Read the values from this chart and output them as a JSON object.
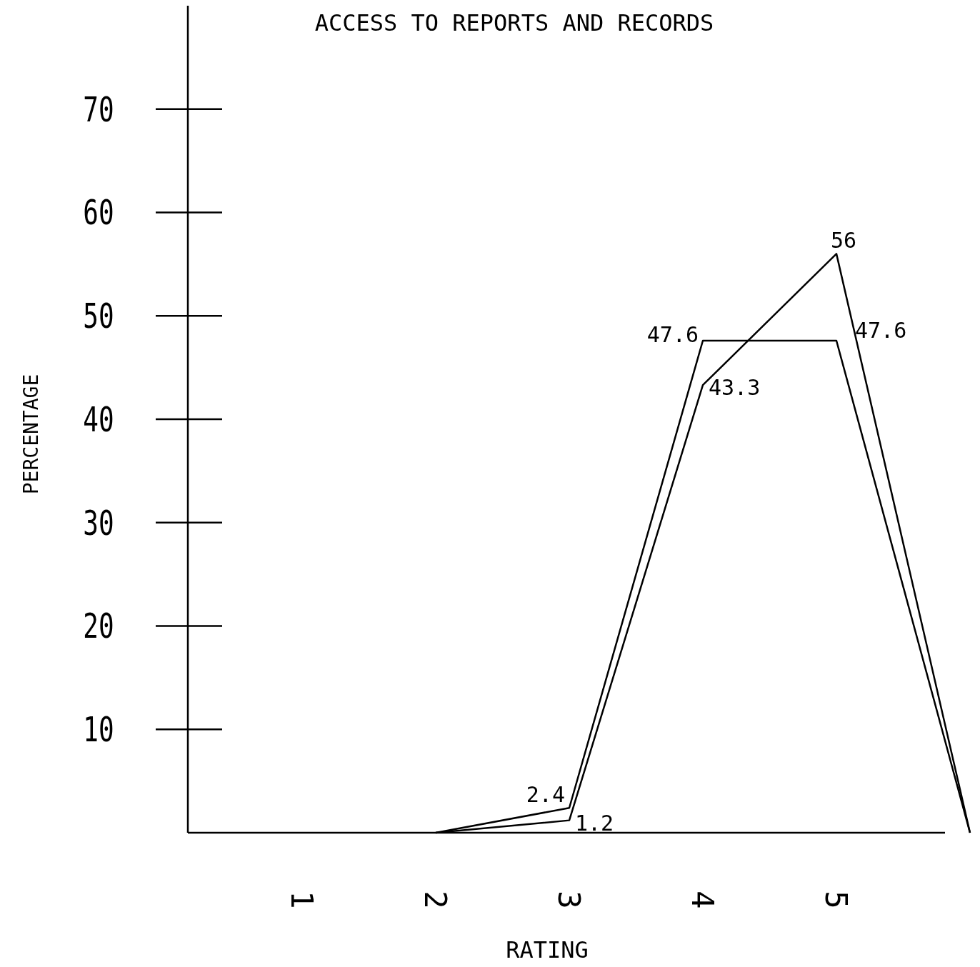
{
  "chart_data": {
    "type": "line",
    "title": "ACCESS TO REPORTS AND RECORDS",
    "xlabel": "RATING",
    "ylabel": "PERCENTAGE",
    "categories": [
      "1",
      "2",
      "3",
      "4",
      "5",
      null
    ],
    "ylim": [
      0,
      80
    ],
    "yticks": [
      10,
      20,
      30,
      40,
      50,
      60,
      70
    ],
    "grid": false,
    "marker": "none",
    "line_style": "solid",
    "series": [
      {
        "color": "#000000",
        "values": [
          null,
          0,
          1.2,
          43.3,
          56,
          0
        ],
        "value_labels": [
          null,
          null,
          "1.2",
          "43.3",
          "56",
          null
        ]
      },
      {
        "color": "#000000",
        "values": [
          null,
          0,
          2.4,
          47.6,
          47.6,
          0
        ],
        "value_labels": [
          null,
          null,
          "2.4",
          "47.6",
          "47.6",
          null
        ]
      }
    ]
  }
}
